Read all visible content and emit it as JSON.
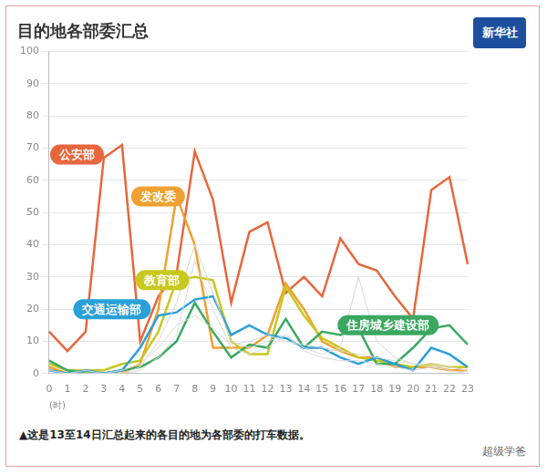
{
  "chart_data": {
    "type": "line",
    "title": "目的地各部委汇总",
    "x_label": "(时)",
    "categories": [
      "0",
      "1",
      "2",
      "3",
      "4",
      "5",
      "6",
      "7",
      "8",
      "9",
      "10",
      "11",
      "12",
      "13",
      "14",
      "15",
      "16",
      "17",
      "18",
      "19",
      "20",
      "21",
      "22",
      "23"
    ],
    "series": [
      {
        "color": "#d8d8d8",
        "values": [
          1,
          0,
          0,
          0,
          0,
          2,
          10,
          22,
          40,
          25,
          10,
          8,
          10,
          12,
          8,
          6,
          8,
          30,
          10,
          5,
          3,
          2,
          2,
          1
        ]
      },
      {
        "color": "#d8d8d8",
        "values": [
          0,
          0,
          0,
          0,
          1,
          3,
          8,
          15,
          18,
          14,
          9,
          10,
          12,
          10,
          9,
          8,
          7,
          6,
          5,
          4,
          3,
          3,
          2,
          1
        ]
      },
      {
        "color": "#d8d8d8",
        "values": [
          0,
          0,
          1,
          0,
          0,
          1,
          5,
          12,
          35,
          20,
          8,
          6,
          8,
          12,
          7,
          5,
          4,
          4,
          3,
          2,
          1,
          2,
          1,
          0
        ]
      },
      {
        "name": "交通运输部",
        "color": "#2aa0d8",
        "values": [
          1,
          0,
          1,
          0,
          1,
          8,
          18,
          19,
          23,
          24,
          12,
          15,
          12,
          11,
          8,
          8,
          5,
          3,
          5,
          3,
          1,
          8,
          6,
          2
        ]
      },
      {
        "name": "住房城乡建设部",
        "color": "#3aa860",
        "values": [
          4,
          1,
          0,
          0,
          1,
          2,
          5,
          10,
          22,
          13,
          5,
          9,
          8,
          17,
          8,
          13,
          12,
          14,
          3,
          3,
          8,
          14,
          15,
          9
        ]
      },
      {
        "name": "教育部",
        "color": "#c8c820",
        "values": [
          3,
          1,
          1,
          1,
          3,
          4,
          13,
          29,
          30,
          29,
          10,
          6,
          6,
          27,
          18,
          11,
          8,
          5,
          4,
          3,
          2,
          3,
          2,
          2
        ]
      },
      {
        "name": "发改委",
        "color": "#f0a030",
        "values": [
          2,
          0,
          0,
          0,
          0,
          3,
          20,
          55,
          40,
          8,
          8,
          8,
          12,
          28,
          20,
          10,
          7,
          5,
          5,
          2,
          2,
          2,
          1,
          1
        ]
      },
      {
        "name": "公安部",
        "color": "#e8663d",
        "values": [
          13,
          7,
          13,
          67,
          71,
          10,
          24,
          31,
          69,
          54,
          22,
          44,
          47,
          25,
          30,
          24,
          42,
          34,
          32,
          24,
          17,
          57,
          61,
          34
        ]
      }
    ],
    "ylim": [
      0,
      100
    ],
    "yticks": [
      0,
      10,
      20,
      30,
      40,
      50,
      60,
      70,
      80,
      90,
      100
    ],
    "grid": true
  },
  "caption": "▲这是13至14日汇总起来的各目的地为各部委的打车数据。",
  "logo_text": "新华社",
  "watermark": "超级学爸"
}
